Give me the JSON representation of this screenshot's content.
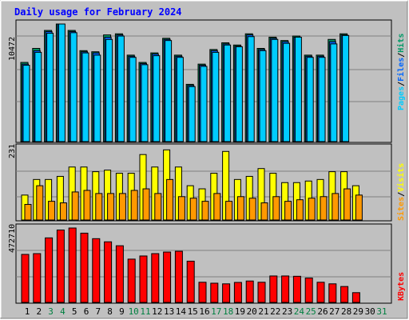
{
  "chart_data": {
    "type": "bar",
    "title": "Daily usage for February 2024",
    "days": [
      "1",
      "2",
      "3",
      "4",
      "5",
      "6",
      "7",
      "8",
      "9",
      "10",
      "11",
      "12",
      "13",
      "14",
      "15",
      "16",
      "17",
      "18",
      "19",
      "20",
      "21",
      "22",
      "23",
      "24",
      "25",
      "26",
      "27",
      "28",
      "29",
      "30",
      "31"
    ],
    "weekend_days": [
      "3",
      "4",
      "10",
      "11",
      "17",
      "18",
      "24",
      "25",
      "31"
    ],
    "panels": [
      {
        "name": "pages-files-hits",
        "ymax_label": "10472",
        "ymax": 10472,
        "right_label": [
          "Pages",
          "Files",
          "Hits"
        ],
        "series": [
          {
            "name": "Hits",
            "color": "#009966",
            "values": [
              7050,
              8300,
              9900,
              10472,
              9900,
              8100,
              8000,
              9500,
              9600,
              7700,
              7050,
              7900,
              9200,
              7700,
              5100,
              6900,
              8200,
              8800,
              8600,
              9600,
              8300,
              9300,
              9000,
              9400,
              7700,
              7700,
              9100,
              9600
            ]
          },
          {
            "name": "Files",
            "color": "#0066ff",
            "values": [
              6900,
              8100,
              9800,
              10472,
              9800,
              8000,
              7900,
              9300,
              9500,
              7600,
              6950,
              7800,
              9100,
              7600,
              5000,
              6800,
              8100,
              8700,
              8500,
              9500,
              8200,
              9200,
              8900,
              9300,
              7600,
              7600,
              8900,
              9500
            ]
          },
          {
            "name": "Pages",
            "color": "#00ccff",
            "values": [
              6800,
              7950,
              9650,
              10472,
              9700,
              7900,
              7700,
              9100,
              9400,
              7500,
              6850,
              7650,
              9000,
              7500,
              4900,
              6700,
              7950,
              8600,
              8450,
              9350,
              8100,
              9100,
              8750,
              9300,
              7500,
              7500,
              8700,
              9450
            ]
          }
        ]
      },
      {
        "name": "visits-sites",
        "ymax_label": "231",
        "ymax": 231,
        "right_label": [
          "Sites",
          "Visits"
        ],
        "series": [
          {
            "name": "Visits",
            "color": "#ffff00",
            "values": [
              80,
              130,
              130,
              140,
              170,
              170,
              155,
              160,
              150,
              150,
              210,
              170,
              225,
              170,
              110,
              100,
              150,
              220,
              130,
              140,
              165,
              150,
              120,
              120,
              125,
              130,
              155,
              155,
              110
            ]
          },
          {
            "name": "Sites",
            "color": "#ff9900",
            "values": [
              50,
              110,
              60,
              55,
              90,
              95,
              85,
              85,
              85,
              95,
              100,
              85,
              130,
              75,
              70,
              60,
              85,
              60,
              75,
              70,
              55,
              75,
              60,
              65,
              70,
              75,
              85,
              100,
              80
            ]
          }
        ]
      },
      {
        "name": "kbytes",
        "ymax_label": "472710",
        "ymax": 472710,
        "right_label": [
          "KBytes"
        ],
        "series": [
          {
            "name": "KBytes",
            "color": "#ff0000",
            "values": [
              305000,
              310000,
              410000,
              460000,
              472710,
              440000,
              405000,
              385000,
              360000,
              275000,
              295000,
              310000,
              320000,
              325000,
              262000,
              128000,
              122000,
              118000,
              127000,
              136000,
              128000,
              168000,
              168000,
              166000,
              155000,
              128000,
              118000,
              101000,
              62000
            ]
          }
        ]
      }
    ]
  }
}
